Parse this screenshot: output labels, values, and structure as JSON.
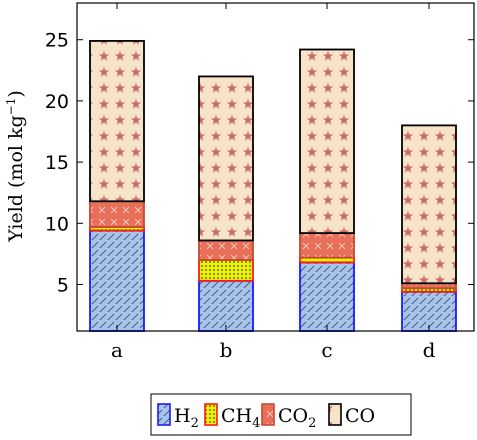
{
  "chart_data": {
    "type": "bar",
    "stacked": true,
    "categories": [
      "a",
      "b",
      "c",
      "d"
    ],
    "ylabel": "Yield (mol kg",
    "ylabel_sup": "−1",
    "ylabel_close": ")",
    "ylim": [
      1.2,
      28
    ],
    "yticks": [
      5,
      10,
      15,
      20,
      25
    ],
    "grid": false,
    "legend_position": "bottom",
    "series": [
      {
        "name": "H",
        "name_sub": "2",
        "values": [
          9.4,
          5.3,
          6.8,
          4.4
        ],
        "fill": "#a7c4e6",
        "stroke": "#1a1aff",
        "pattern": "hatch"
      },
      {
        "name": "CH",
        "name_sub": "4",
        "values": [
          0.3,
          1.7,
          0.4,
          0.3
        ],
        "fill": "#f0f000",
        "stroke": "#ff1a1a",
        "pattern": "grid"
      },
      {
        "name": "CO",
        "name_sub": "2",
        "values": [
          2.1,
          1.6,
          2.0,
          0.4
        ],
        "fill": "#e8705a",
        "stroke": "#c84a2e",
        "pattern": "cross"
      },
      {
        "name": "CO",
        "name_sub": "",
        "values": [
          13.1,
          13.4,
          15.0,
          12.9
        ],
        "fill": "#f6e4c8",
        "stroke": "#000000",
        "pattern": "star"
      }
    ]
  }
}
